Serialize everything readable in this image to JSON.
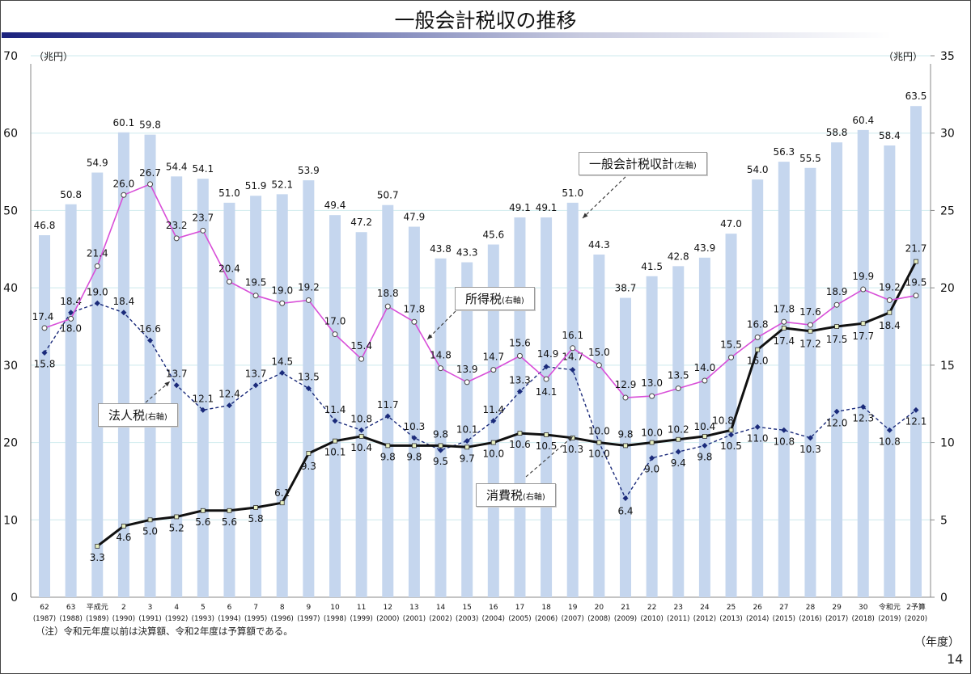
{
  "page": {
    "title": "一般会計税収の推移",
    "note": "（注）令和元年度以前は決算額、令和2年度は予算額である。",
    "x_unit": "（年度）",
    "page_number": "14"
  },
  "chart_data": {
    "type": "bar",
    "title": "一般会計税収の推移",
    "y_left_label": "（兆円）",
    "y_right_label": "（兆円）",
    "y_left_range": [
      0,
      70
    ],
    "y_right_range": [
      0,
      35
    ],
    "y_left_ticks": [
      "0",
      "10",
      "20",
      "30",
      "40",
      "50",
      "60",
      "70"
    ],
    "y_right_ticks": [
      "0",
      "5",
      "10",
      "15",
      "20",
      "25",
      "30",
      "35"
    ],
    "grid": true,
    "categories": [
      {
        "era": "62",
        "year": "(1987)"
      },
      {
        "era": "63",
        "year": "(1988)"
      },
      {
        "era": "平成元",
        "year": "(1989)"
      },
      {
        "era": "2",
        "year": "(1990)"
      },
      {
        "era": "3",
        "year": "(1991)"
      },
      {
        "era": "4",
        "year": "(1992)"
      },
      {
        "era": "5",
        "year": "(1993)"
      },
      {
        "era": "6",
        "year": "(1994)"
      },
      {
        "era": "7",
        "year": "(1995)"
      },
      {
        "era": "8",
        "year": "(1996)"
      },
      {
        "era": "9",
        "year": "(1997)"
      },
      {
        "era": "10",
        "year": "(1998)"
      },
      {
        "era": "11",
        "year": "(1999)"
      },
      {
        "era": "12",
        "year": "(2000)"
      },
      {
        "era": "13",
        "year": "(2001)"
      },
      {
        "era": "14",
        "year": "(2002)"
      },
      {
        "era": "15",
        "year": "(2003)"
      },
      {
        "era": "16",
        "year": "(2004)"
      },
      {
        "era": "17",
        "year": "(2005)"
      },
      {
        "era": "18",
        "year": "(2006)"
      },
      {
        "era": "19",
        "year": "(2007)"
      },
      {
        "era": "20",
        "year": "(2008)"
      },
      {
        "era": "21",
        "year": "(2009)"
      },
      {
        "era": "22",
        "year": "(2010)"
      },
      {
        "era": "23",
        "year": "(2011)"
      },
      {
        "era": "24",
        "year": "(2012)"
      },
      {
        "era": "25",
        "year": "(2013)"
      },
      {
        "era": "26",
        "year": "(2014)"
      },
      {
        "era": "27",
        "year": "(2015)"
      },
      {
        "era": "28",
        "year": "(2016)"
      },
      {
        "era": "29",
        "year": "(2017)"
      },
      {
        "era": "30",
        "year": "(2018)"
      },
      {
        "era": "令和元",
        "year": "(2019)"
      },
      {
        "era": "2予算",
        "year": "(2020)"
      }
    ],
    "series": [
      {
        "name": "一般会計税収計",
        "axis_note": "(左軸)",
        "axis": "left",
        "kind": "bar",
        "color": "#c5d6ee",
        "values": [
          46.8,
          50.8,
          54.9,
          60.1,
          59.8,
          54.4,
          54.1,
          51.0,
          51.9,
          52.1,
          53.9,
          49.4,
          47.2,
          50.7,
          47.9,
          43.8,
          43.3,
          45.6,
          49.1,
          49.1,
          51.0,
          44.3,
          38.7,
          41.5,
          42.8,
          43.9,
          47.0,
          54.0,
          56.3,
          55.5,
          58.8,
          60.4,
          58.4,
          63.5
        ]
      },
      {
        "name": "所得税",
        "axis_note": "(右軸)",
        "axis": "right",
        "kind": "line",
        "color": "#d84fd8",
        "values": [
          17.4,
          18.0,
          21.4,
          26.0,
          26.7,
          23.2,
          23.7,
          20.4,
          19.5,
          19.0,
          19.2,
          17.0,
          15.4,
          18.8,
          17.8,
          14.8,
          13.9,
          14.7,
          15.6,
          14.1,
          16.1,
          15.0,
          12.9,
          13.0,
          13.5,
          14.0,
          15.5,
          16.8,
          17.8,
          17.6,
          18.9,
          19.9,
          19.2,
          19.5
        ]
      },
      {
        "name": "法人税",
        "axis_note": "(右軸)",
        "axis": "right",
        "kind": "dashed-line",
        "color": "#1a2a7a",
        "values": [
          15.8,
          18.4,
          19.0,
          18.4,
          16.6,
          13.7,
          12.1,
          12.4,
          13.7,
          14.5,
          13.5,
          11.4,
          10.8,
          11.7,
          10.3,
          9.5,
          10.1,
          11.4,
          13.3,
          14.9,
          14.7,
          10.0,
          6.4,
          9.0,
          9.4,
          9.8,
          10.5,
          11.0,
          10.8,
          10.3,
          12.0,
          12.3,
          10.8,
          12.1
        ]
      },
      {
        "name": "消費税",
        "axis_note": "(右軸)",
        "axis": "right",
        "kind": "line",
        "color": "#111111",
        "values": [
          null,
          null,
          3.3,
          4.6,
          5.0,
          5.2,
          5.6,
          5.6,
          5.8,
          6.1,
          9.3,
          10.1,
          10.4,
          9.8,
          9.8,
          9.8,
          9.7,
          10.0,
          10.6,
          10.5,
          10.3,
          10.0,
          9.8,
          10.0,
          10.2,
          10.4,
          10.8,
          16.0,
          17.4,
          17.2,
          17.5,
          17.7,
          18.4,
          21.7
        ]
      }
    ]
  }
}
